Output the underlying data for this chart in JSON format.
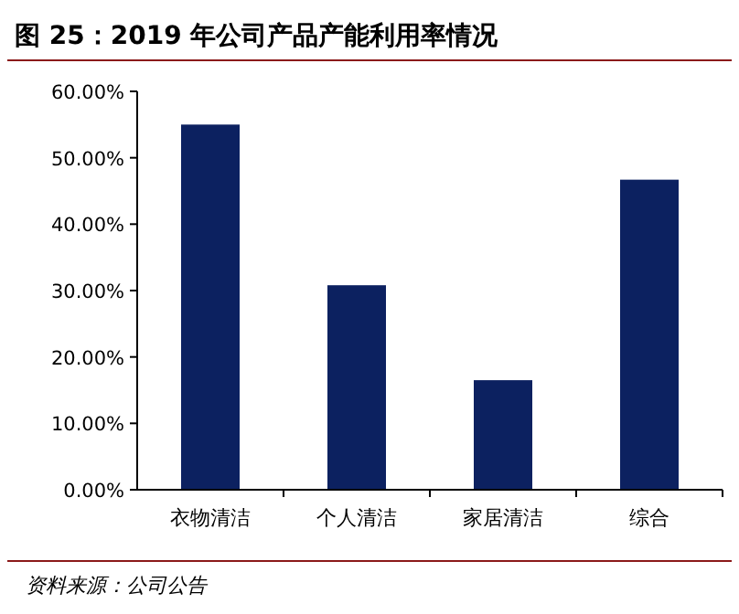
{
  "chart_data": {
    "type": "bar",
    "title": "图 25：2019 年公司产品产能利用率情况",
    "categories": [
      "衣物清洁",
      "个人清洁",
      "家居清洁",
      "综合"
    ],
    "values": [
      55,
      30.8,
      16.5,
      46.7
    ],
    "color": "#0c2160",
    "ylim": [
      0,
      60
    ],
    "yticks": [
      {
        "value": 0,
        "label": "0.00%"
      },
      {
        "value": 10,
        "label": "10.00%"
      },
      {
        "value": 20,
        "label": "20.00%"
      },
      {
        "value": 30,
        "label": "30.00%"
      },
      {
        "value": 40,
        "label": "40.00%"
      },
      {
        "value": 50,
        "label": "50.00%"
      },
      {
        "value": 60,
        "label": "60.00%"
      }
    ],
    "annotations": [
      "资料来源：公司公告"
    ]
  }
}
